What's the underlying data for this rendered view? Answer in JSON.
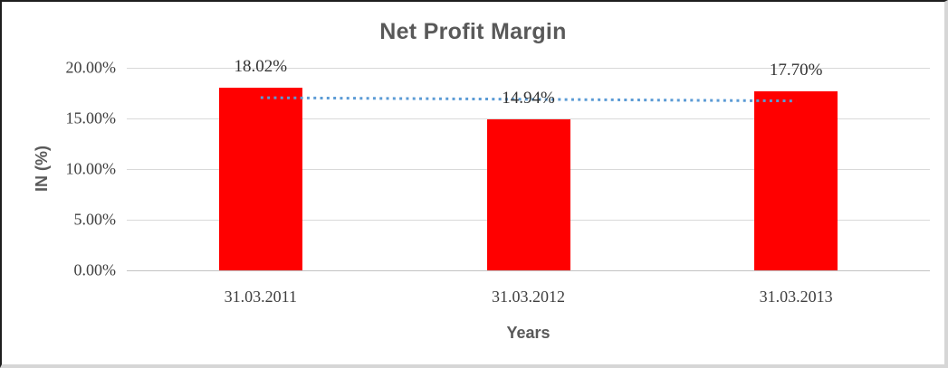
{
  "chart_data": {
    "type": "bar",
    "title": "Net Profit Margin",
    "xlabel": "Years",
    "ylabel": "IN (%)",
    "categories": [
      "31.03.2011",
      "31.03.2012",
      "31.03.2013"
    ],
    "values": [
      18.02,
      14.94,
      17.7
    ],
    "data_labels": [
      "18.02%",
      "14.94%",
      "17.70%"
    ],
    "ylim": [
      0,
      20
    ],
    "yticks": [
      "0.00%",
      "5.00%",
      "10.00%",
      "15.00%",
      "20.00%"
    ],
    "ytick_values": [
      0,
      5,
      10,
      15,
      20
    ],
    "grid": true,
    "legend": "none",
    "bar_color": "#ff0000",
    "trendline": {
      "type": "linear",
      "style": "dotted",
      "color": "#5b9bd5",
      "endpoint_values": [
        17.05,
        16.73
      ]
    },
    "text_colors": {
      "title": "#595959",
      "axis_titles": "#595959",
      "tick_labels": "#404040",
      "data_labels": "#333333"
    },
    "gridline_color": "#d9d9d9"
  }
}
